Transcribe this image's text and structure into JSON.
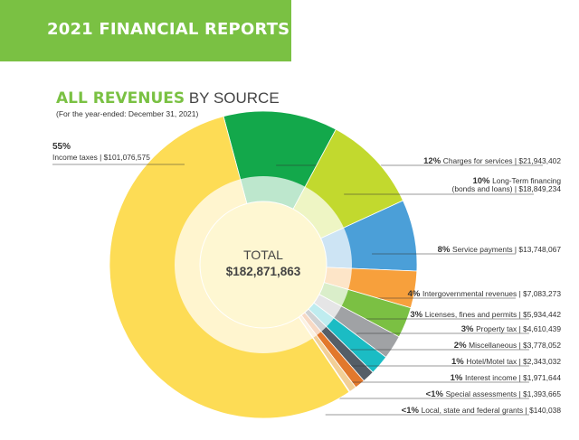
{
  "header": {
    "title": "2021 FINANCIAL REPORTS"
  },
  "colors": {
    "brand_green": "#7ac143"
  },
  "chart_data": {
    "type": "pie",
    "title": "ALL REVENUES",
    "title_suffix": "BY SOURCE",
    "subtitle": "(For the year-ended: December 31, 2021)",
    "center_label": "TOTAL",
    "center_value": "$182,871,863",
    "slices": [
      {
        "pct": "12%",
        "label": "Charges for services",
        "amount": "$21,943,402",
        "value": 21943402,
        "color": "#13a84b"
      },
      {
        "pct": "10%",
        "label": "Long-Term financing",
        "label2": "(bonds and loans)",
        "amount": "$18,849,234",
        "value": 18849234,
        "color": "#c2d92e"
      },
      {
        "pct": "8%",
        "label": "Service payments",
        "amount": "$13,748,067",
        "value": 13748067,
        "color": "#4b9fd8"
      },
      {
        "pct": "4%",
        "label": "Intergovernmental revenues",
        "amount": "$7,083,273",
        "value": 7083273,
        "color": "#f7a03c"
      },
      {
        "pct": "3%",
        "label": "Licenses, fines and permits",
        "amount": "$5,934,442",
        "value": 5934442,
        "color": "#7bc043"
      },
      {
        "pct": "3%",
        "label": "Property tax",
        "amount": "$4,610,439",
        "value": 4610439,
        "color": "#a0a2a5"
      },
      {
        "pct": "2%",
        "label": "Miscellaneous",
        "amount": "$3,778,052",
        "value": 3778052,
        "color": "#1bbcc4"
      },
      {
        "pct": "1%",
        "label": "Hotel/Motel tax",
        "amount": "$2,343,032",
        "value": 2343032,
        "color": "#555e67"
      },
      {
        "pct": "1%",
        "label": "Interest income",
        "amount": "$1,971,644",
        "value": 1971644,
        "color": "#e2782c"
      },
      {
        "pct": "<1%",
        "label": "Special assessments",
        "amount": "$1,393,665",
        "value": 1393665,
        "color": "#f2cf96"
      },
      {
        "pct": "<1%",
        "label": "Local, state and federal grants",
        "amount": "$140,038",
        "value": 140038,
        "color": "#6a5fad"
      },
      {
        "pct": "55%",
        "label": "Income taxes",
        "amount": "$101,076,575",
        "value": 101076575,
        "color": "#fddc55"
      }
    ]
  }
}
